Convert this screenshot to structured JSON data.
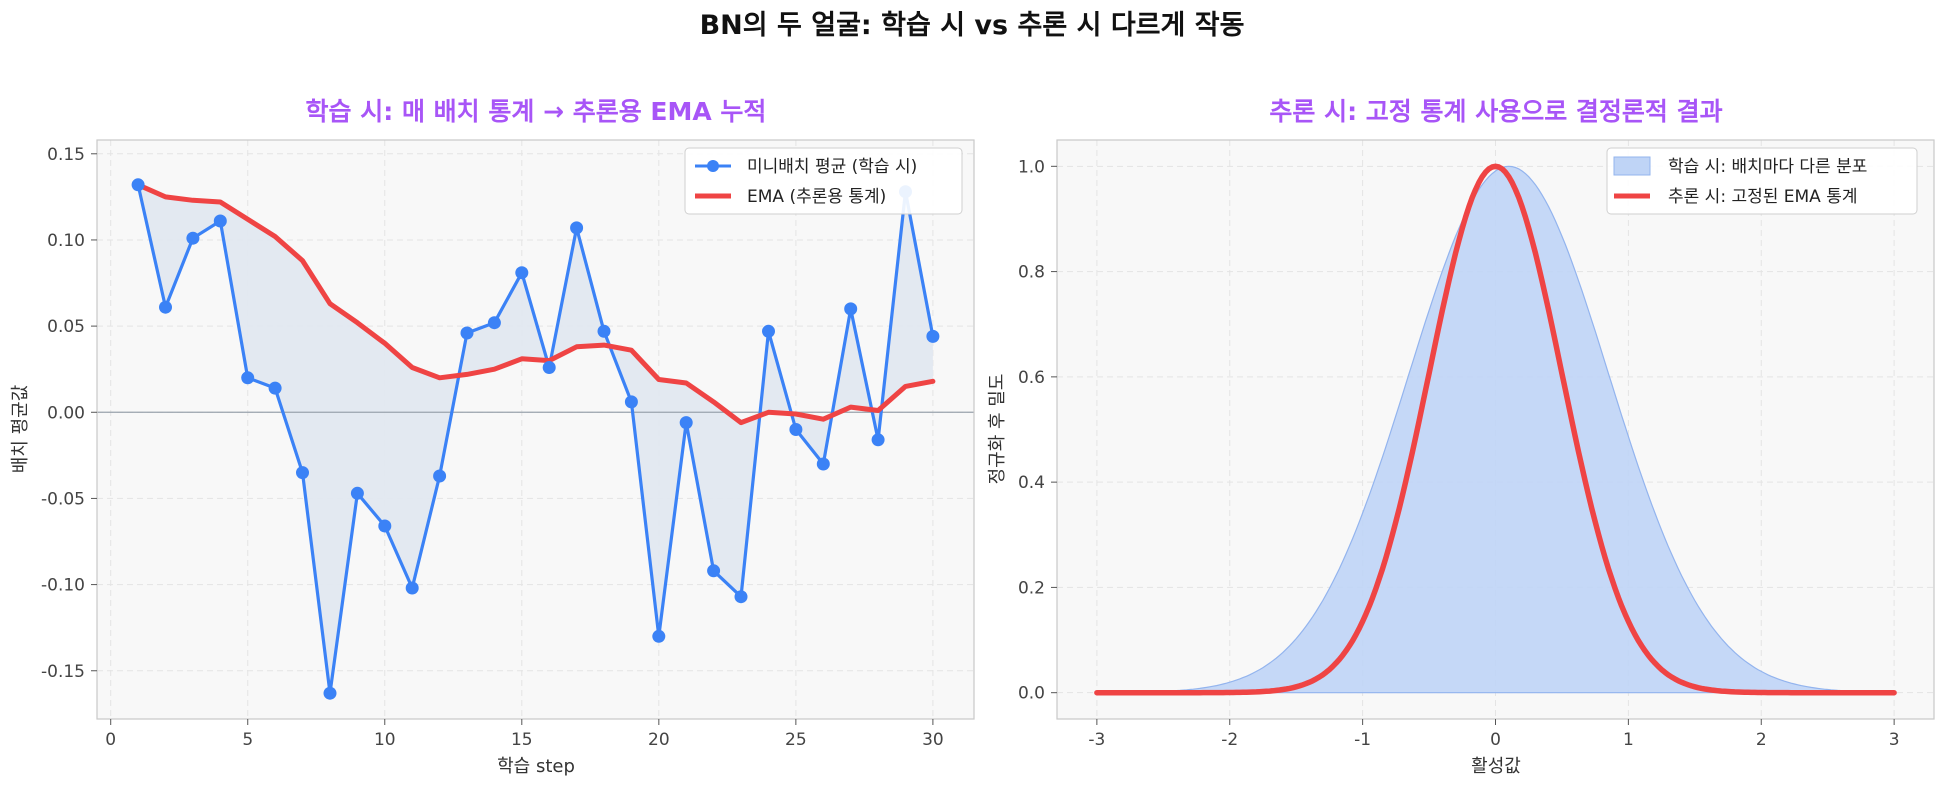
{
  "figure": {
    "suptitle": "BN의 두 얼굴: 학습 시 vs 추론 시 다르게 작동"
  },
  "colors": {
    "title_purple": "#a855f7",
    "minibatch_blue": "#3b82f6",
    "ema_red": "#ef4444",
    "fill_gray": "#e2e8f0",
    "density_fill": "#bfd4f6"
  },
  "chart_data": [
    {
      "type": "line",
      "title": "학습 시: 매 배치 통계 → 추론용 EMA 누적",
      "xlabel": "학습 step",
      "ylabel": "배치 평균값",
      "xlim": [
        -0.5,
        31.5
      ],
      "ylim": [
        -0.178,
        0.158
      ],
      "xticks": [
        0,
        5,
        10,
        15,
        20,
        25,
        30
      ],
      "xtick_labels": [
        "0",
        "5",
        "10",
        "15",
        "20",
        "25",
        "30"
      ],
      "yticks": [
        -0.15,
        -0.1,
        -0.05,
        0.0,
        0.05,
        0.1,
        0.15
      ],
      "ytick_labels": [
        "-0.15",
        "-0.10",
        "-0.05",
        "0.00",
        "0.05",
        "0.10",
        "0.15"
      ],
      "grid": true,
      "legend_position": "upper right",
      "x": [
        1,
        2,
        3,
        4,
        5,
        6,
        7,
        8,
        9,
        10,
        11,
        12,
        13,
        14,
        15,
        16,
        17,
        18,
        19,
        20,
        21,
        22,
        23,
        24,
        25,
        26,
        27,
        28,
        29,
        30
      ],
      "series": [
        {
          "name": "미니배치 평균 (학습 시)",
          "color": "#3b82f6",
          "marker": "circle",
          "values": [
            0.132,
            0.061,
            0.101,
            0.111,
            0.02,
            0.014,
            -0.035,
            -0.163,
            -0.047,
            -0.066,
            -0.102,
            -0.037,
            0.046,
            0.052,
            0.081,
            0.026,
            0.107,
            0.047,
            0.006,
            -0.13,
            -0.006,
            -0.092,
            -0.107,
            0.047,
            -0.01,
            -0.03,
            0.06,
            -0.016,
            0.128,
            0.044
          ]
        },
        {
          "name": "EMA (추론용 통계)",
          "color": "#ef4444",
          "marker": "none",
          "values": [
            0.132,
            0.125,
            0.123,
            0.122,
            0.112,
            0.102,
            0.088,
            0.063,
            0.052,
            0.04,
            0.026,
            0.02,
            0.022,
            0.025,
            0.031,
            0.03,
            0.038,
            0.039,
            0.036,
            0.019,
            0.017,
            0.006,
            -0.006,
            0.0,
            -0.001,
            -0.004,
            0.003,
            0.001,
            0.015,
            0.018
          ]
        }
      ],
      "reference_line_y": 0
    },
    {
      "type": "area",
      "title": "추론 시: 고정 통계 사용으로 결정론적 결과",
      "xlabel": "활성값",
      "ylabel": "정규화 후 밀도",
      "xlim": [
        -3.3,
        3.3
      ],
      "ylim": [
        -0.05,
        1.05
      ],
      "xticks": [
        -3,
        -2,
        -1,
        0,
        1,
        2,
        3
      ],
      "xtick_labels": [
        "-3",
        "-2",
        "-1",
        "0",
        "1",
        "2",
        "3"
      ],
      "yticks": [
        0.0,
        0.2,
        0.4,
        0.6,
        0.8,
        1.0
      ],
      "ytick_labels": [
        "0.0",
        "0.2",
        "0.4",
        "0.6",
        "0.8",
        "1.0"
      ],
      "grid": true,
      "legend_position": "upper right",
      "series": [
        {
          "name": "학습 시: 배치마다 다른 분포",
          "kind": "filled_gaussian",
          "color": "#bfd4f6",
          "mean": 0.1,
          "sigma": 0.75,
          "peak": 1.0
        },
        {
          "name": "추론 시: 고정된 EMA 통계",
          "kind": "gaussian_line",
          "color": "#ef4444",
          "mean": 0.0,
          "sigma": 0.5,
          "peak": 1.0
        }
      ]
    }
  ]
}
